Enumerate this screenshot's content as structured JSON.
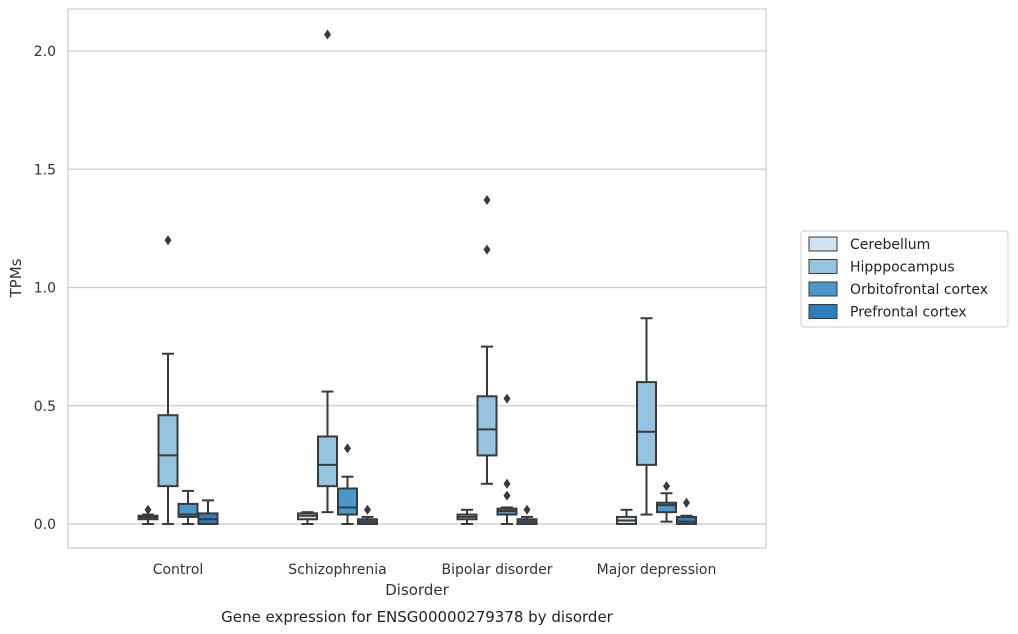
{
  "chart_data": {
    "type": "box",
    "caption": "Gene expression for ENSG00000279378 by disorder",
    "xlabel": "Disorder",
    "ylabel": "TPMs",
    "ylim": [
      -0.1,
      2.18
    ],
    "yticks": [
      0.0,
      0.5,
      1.0,
      1.5,
      2.0
    ],
    "ytick_labels": [
      "0.0",
      "0.5",
      "1.0",
      "1.5",
      "2.0"
    ],
    "grid": "horizontal",
    "legend_position": "right",
    "categories": [
      "Control",
      "Schizophrenia",
      "Bipolar disorder",
      "Major depression"
    ],
    "series": [
      {
        "name": "Cerebellum",
        "color": "#d0e1f2",
        "boxes": [
          {
            "whisker_low": 0.0,
            "q1": 0.02,
            "median": 0.028,
            "q3": 0.035,
            "whisker_high": 0.04,
            "outliers": [
              0.06
            ]
          },
          {
            "whisker_low": 0.0,
            "q1": 0.02,
            "median": 0.035,
            "q3": 0.045,
            "whisker_high": 0.05,
            "outliers": []
          },
          {
            "whisker_low": 0.0,
            "q1": 0.02,
            "median": 0.03,
            "q3": 0.04,
            "whisker_high": 0.06,
            "outliers": []
          },
          {
            "whisker_low": 0.0,
            "q1": 0.0,
            "median": 0.015,
            "q3": 0.03,
            "whisker_high": 0.06,
            "outliers": []
          }
        ]
      },
      {
        "name": "Hipppocampus",
        "color": "#94c4df",
        "boxes": [
          {
            "whisker_low": 0.0,
            "q1": 0.16,
            "median": 0.29,
            "q3": 0.46,
            "whisker_high": 0.72,
            "outliers": [
              1.2
            ]
          },
          {
            "whisker_low": 0.05,
            "q1": 0.16,
            "median": 0.25,
            "q3": 0.37,
            "whisker_high": 0.56,
            "outliers": [
              2.07
            ]
          },
          {
            "whisker_low": 0.17,
            "q1": 0.29,
            "median": 0.4,
            "q3": 0.54,
            "whisker_high": 0.75,
            "outliers": [
              1.16,
              1.37
            ]
          },
          {
            "whisker_low": 0.04,
            "q1": 0.25,
            "median": 0.39,
            "q3": 0.6,
            "whisker_high": 0.87,
            "outliers": []
          }
        ]
      },
      {
        "name": "Orbitofrontal cortex",
        "color": "#4a98c9",
        "boxes": [
          {
            "whisker_low": 0.0,
            "q1": 0.03,
            "median": 0.04,
            "q3": 0.085,
            "whisker_high": 0.14,
            "outliers": []
          },
          {
            "whisker_low": 0.0,
            "q1": 0.04,
            "median": 0.07,
            "q3": 0.15,
            "whisker_high": 0.2,
            "outliers": [
              0.32
            ]
          },
          {
            "whisker_low": 0.0,
            "q1": 0.04,
            "median": 0.055,
            "q3": 0.065,
            "whisker_high": 0.07,
            "outliers": [
              0.12,
              0.17,
              0.53
            ]
          },
          {
            "whisker_low": 0.01,
            "q1": 0.05,
            "median": 0.08,
            "q3": 0.09,
            "whisker_high": 0.13,
            "outliers": [
              0.16
            ]
          }
        ]
      },
      {
        "name": "Prefrontal cortex",
        "color": "#2e7ebc",
        "boxes": [
          {
            "whisker_low": 0.0,
            "q1": 0.0,
            "median": 0.02,
            "q3": 0.045,
            "whisker_high": 0.1,
            "outliers": []
          },
          {
            "whisker_low": 0.0,
            "q1": 0.0,
            "median": 0.01,
            "q3": 0.02,
            "whisker_high": 0.03,
            "outliers": [
              0.06
            ]
          },
          {
            "whisker_low": 0.0,
            "q1": 0.0,
            "median": 0.01,
            "q3": 0.02,
            "whisker_high": 0.03,
            "outliers": [
              0.06
            ]
          },
          {
            "whisker_low": 0.0,
            "q1": 0.0,
            "median": 0.01,
            "q3": 0.03,
            "whisker_high": 0.035,
            "outliers": [
              0.09
            ]
          }
        ]
      }
    ]
  }
}
